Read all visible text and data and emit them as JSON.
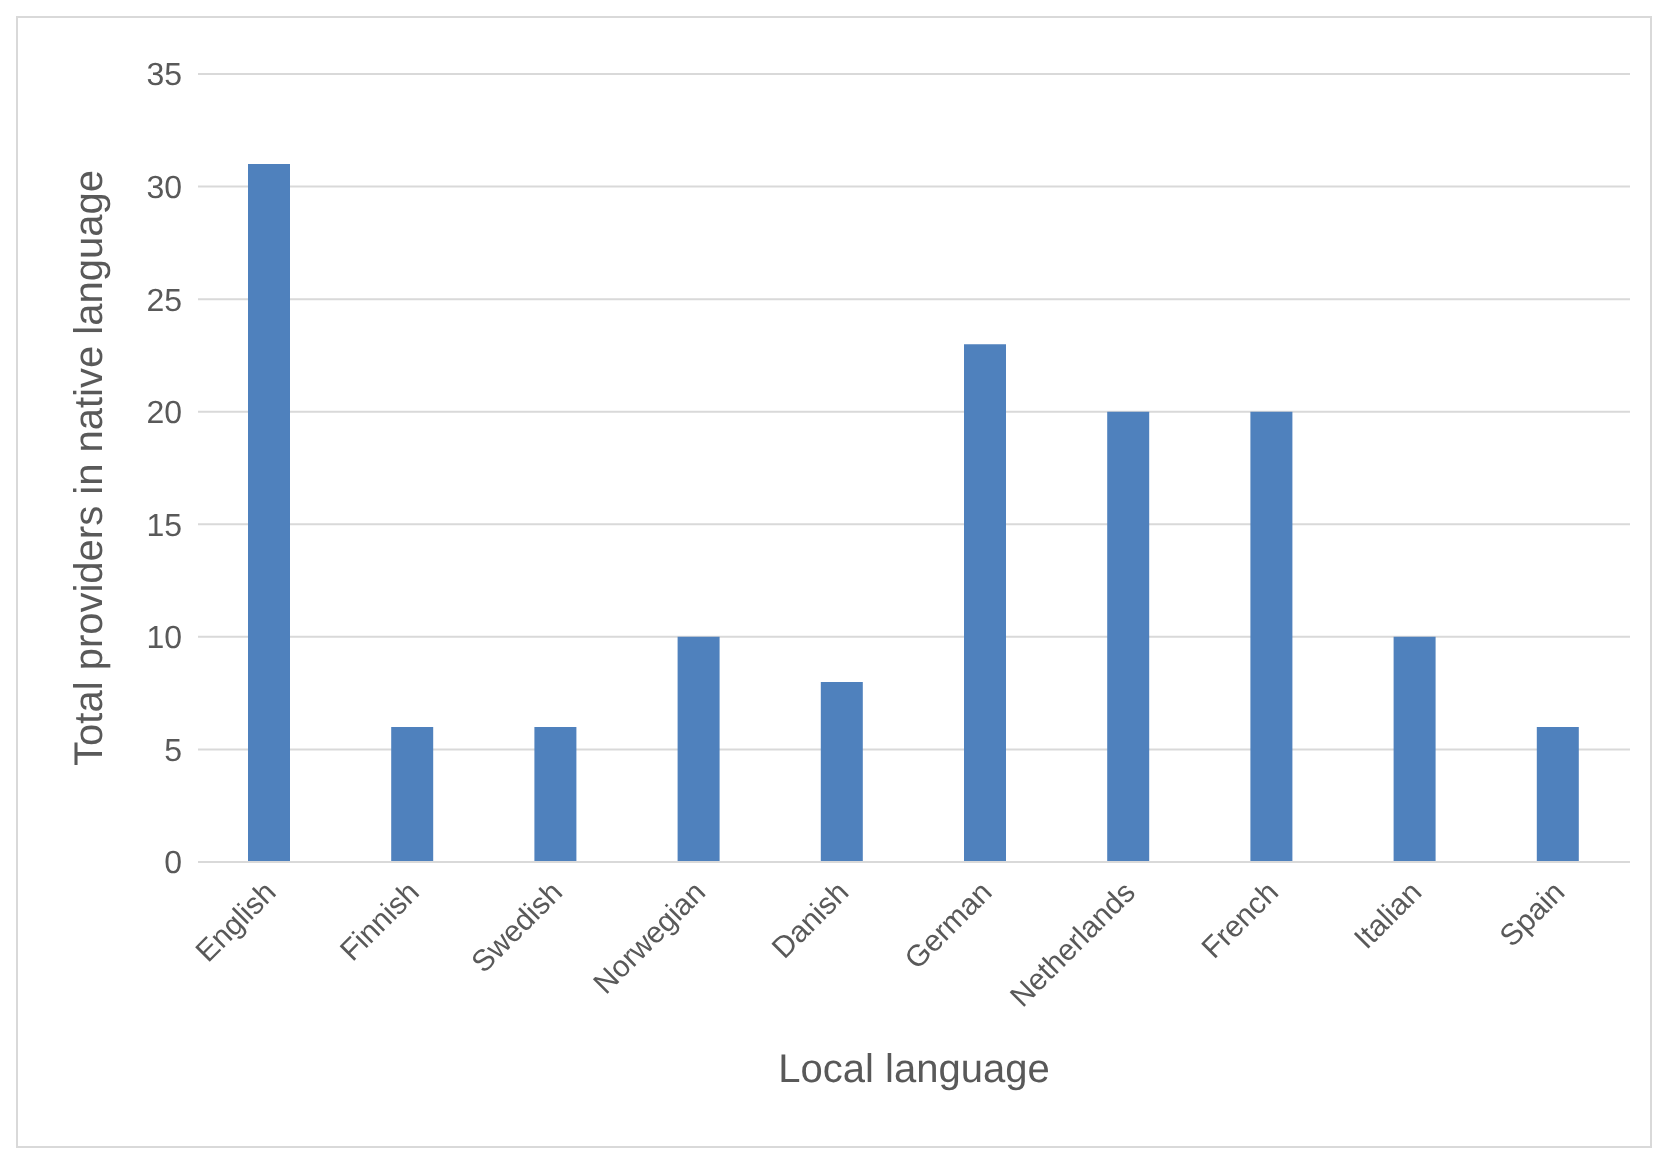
{
  "chart_data": {
    "type": "bar",
    "xlabel": "Local language",
    "ylabel": "Total providers in native language",
    "categories": [
      "English",
      "Finnish",
      "Swedish",
      "Norwegian",
      "Danish",
      "German",
      "Netherlands",
      "French",
      "Italian",
      "Spain"
    ],
    "values": [
      31,
      6,
      6,
      10,
      8,
      23,
      20,
      20,
      10,
      6
    ],
    "color": "#4f81bd",
    "ylim": [
      0,
      35
    ],
    "yticks": [
      0,
      5,
      10,
      15,
      20,
      25,
      30,
      35
    ],
    "grid": "y"
  }
}
